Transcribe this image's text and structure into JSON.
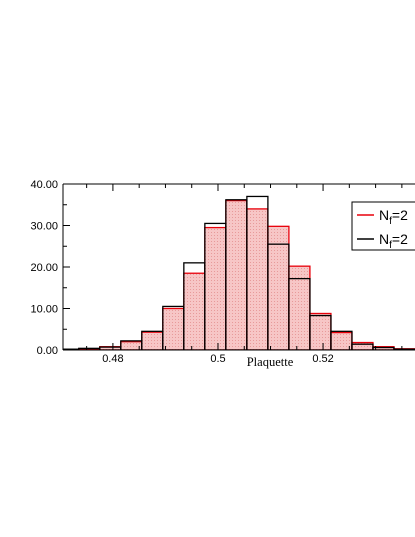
{
  "chart_data": {
    "type": "bar",
    "title": "",
    "xlabel": "Plaquette",
    "ylabel": "",
    "xlim": [
      0.4705,
      0.5375
    ],
    "ylim": [
      0,
      40
    ],
    "grid": false,
    "legend_position": "top-right",
    "x_ticks": [
      "0.48",
      "0.5",
      "0.52"
    ],
    "x_tick_values": [
      0.48,
      0.5,
      0.52
    ],
    "y_ticks": [
      "0.00",
      "10.00",
      "20.00",
      "30.00",
      "40.00"
    ],
    "y_tick_values": [
      0,
      10,
      20,
      30,
      40
    ],
    "bin_width": 0.004,
    "bin_left_edges": [
      0.4695,
      0.4735,
      0.4775,
      0.4815,
      0.4855,
      0.4895,
      0.4935,
      0.4975,
      0.5015,
      0.5055,
      0.5095,
      0.5135,
      0.5175,
      0.5215,
      0.5255,
      0.5295,
      0.5335
    ],
    "series": [
      {
        "legend_base": "N",
        "legend_sub": "f",
        "legend_rest": "=2",
        "color": "#e8000b",
        "values": [
          0.1,
          0.3,
          0.8,
          2.0,
          4.3,
          10.0,
          18.5,
          29.5,
          36.0,
          34.0,
          29.8,
          20.2,
          8.8,
          4.2,
          1.8,
          0.8,
          0.3
        ]
      },
      {
        "legend_base": "N",
        "legend_sub": "f",
        "legend_rest": "=2",
        "color": "#000000",
        "values": [
          0.2,
          0.4,
          0.7,
          2.2,
          4.5,
          10.5,
          21.0,
          30.5,
          36.2,
          37.0,
          25.5,
          17.2,
          8.3,
          4.5,
          1.4,
          0.6,
          0.2
        ]
      }
    ]
  }
}
